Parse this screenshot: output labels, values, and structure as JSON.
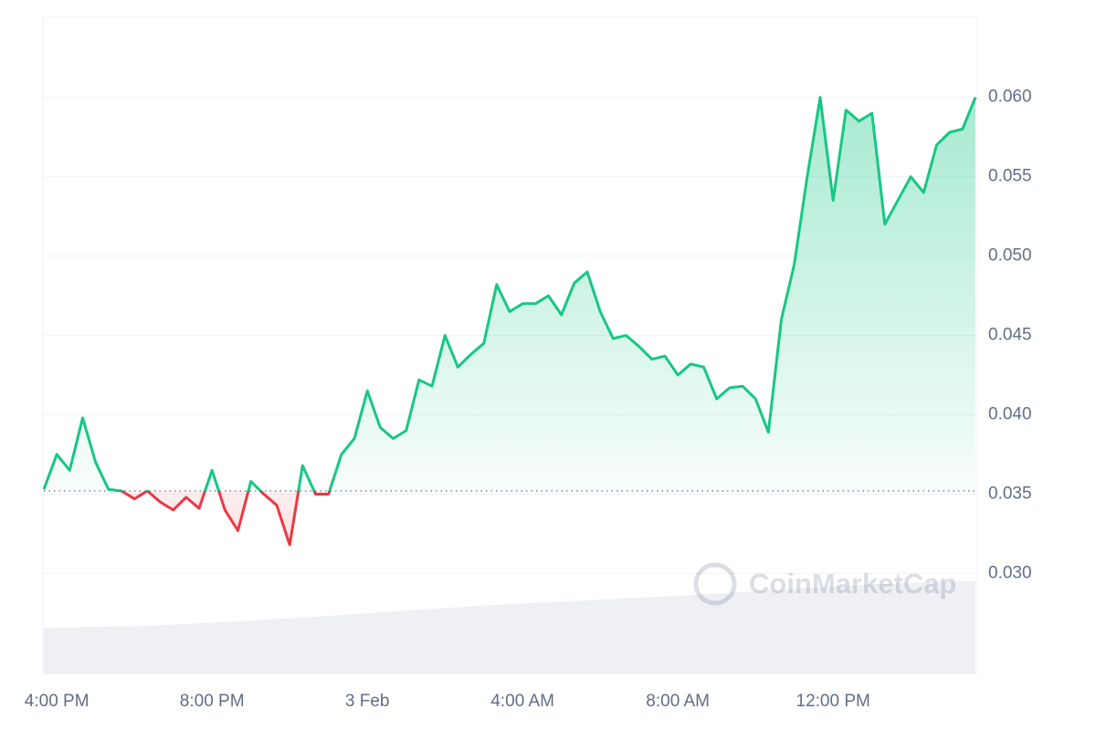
{
  "chart_data": {
    "type": "line",
    "watermark": "CoinMarketCap",
    "categories": [
      null,
      "4:00 PM",
      null,
      null,
      null,
      null,
      null,
      null,
      null,
      null,
      null,
      null,
      null,
      "8:00 PM",
      null,
      null,
      null,
      null,
      null,
      null,
      null,
      null,
      null,
      null,
      null,
      "3 Feb",
      null,
      null,
      null,
      null,
      null,
      null,
      null,
      null,
      null,
      null,
      null,
      "4:00 AM",
      null,
      null,
      null,
      null,
      null,
      null,
      null,
      null,
      null,
      null,
      null,
      "8:00 AM",
      null,
      null,
      null,
      null,
      null,
      null,
      null,
      null,
      null,
      null,
      null,
      "12:00 PM",
      null,
      null,
      null,
      null,
      null,
      null,
      null,
      null,
      null,
      null,
      null
    ],
    "values": [
      0.0353,
      0.0375,
      0.0365,
      0.0398,
      0.037,
      0.0353,
      0.0352,
      0.0347,
      0.0352,
      0.0345,
      0.034,
      0.0348,
      0.0341,
      0.0365,
      0.034,
      0.0327,
      0.0358,
      0.035,
      0.0343,
      0.0318,
      0.0368,
      0.035,
      0.035,
      0.0375,
      0.0385,
      0.0415,
      0.0392,
      0.0385,
      0.039,
      0.0422,
      0.0418,
      0.045,
      0.043,
      0.0438,
      0.0445,
      0.0482,
      0.0465,
      0.047,
      0.047,
      0.0475,
      0.0463,
      0.0483,
      0.049,
      0.0465,
      0.0448,
      0.045,
      0.0443,
      0.0435,
      0.0437,
      0.0425,
      0.0432,
      0.043,
      0.041,
      0.0417,
      0.0418,
      0.041,
      0.0389,
      0.046,
      0.0495,
      0.055,
      0.06,
      0.0535,
      0.0592,
      0.0585,
      0.059,
      0.052,
      0.0535,
      0.055,
      0.054,
      0.057,
      0.0578,
      0.058,
      0.06
    ],
    "baseline": 0.0352,
    "up_color": "#16c784",
    "down_color": "#ea3943",
    "ylim": [
      0.0237,
      0.0651
    ],
    "yticks": [
      {
        "value": 0.03,
        "label": "0.030"
      },
      {
        "value": 0.035,
        "label": "0.035"
      },
      {
        "value": 0.04,
        "label": "0.040"
      },
      {
        "value": 0.045,
        "label": "0.045"
      },
      {
        "value": 0.05,
        "label": "0.050"
      },
      {
        "value": 0.055,
        "label": "0.055"
      },
      {
        "value": 0.06,
        "label": "0.060"
      }
    ],
    "grid": true
  }
}
